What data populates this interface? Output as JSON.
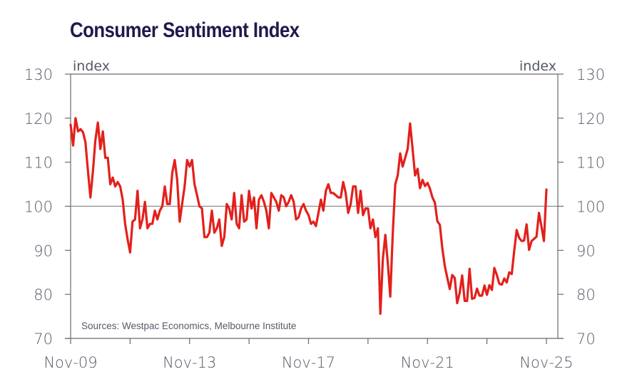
{
  "chart_data": {
    "type": "line",
    "title": "Consumer Sentiment Index",
    "ylabel_left": "index",
    "ylabel_right": "index",
    "xlabel": "",
    "ylim": [
      70,
      130
    ],
    "y_ticks": [
      70,
      80,
      90,
      100,
      110,
      120,
      130
    ],
    "x_tick_labels": [
      "Nov-09",
      "Nov-13",
      "Nov-17",
      "Nov-21",
      "Nov-25"
    ],
    "x_minor_ticks": [
      "Nov-09",
      "Nov-11",
      "Nov-13",
      "Nov-15",
      "Nov-17",
      "Nov-19",
      "Nov-21",
      "Nov-23",
      "Nov-25"
    ],
    "x_range": [
      "2009-11",
      "2025-11"
    ],
    "reference_line": 100,
    "grid": false,
    "legend": "none",
    "source_note": "Sources: Westpac Economics, Melbourne Institute",
    "line_color": "#e3201b",
    "series": [
      {
        "name": "Consumer Sentiment Index",
        "start": "2009-11",
        "frequency": "monthly",
        "values": [
          118.5,
          113.8,
          120,
          117,
          117.5,
          116.8,
          114.5,
          108,
          102,
          108,
          115,
          119,
          113,
          117,
          111,
          111,
          105,
          106.5,
          104.5,
          105.5,
          104.5,
          101.5,
          96,
          92.5,
          89.5,
          96.5,
          97,
          103.5,
          95,
          97,
          101,
          95,
          96,
          96,
          99,
          97,
          99,
          100,
          104.5,
          100.5,
          100.5,
          107.5,
          110.5,
          106,
          96.5,
          100.5,
          104.5,
          110.5,
          109,
          110.5,
          105,
          102.5,
          100,
          99.5,
          93,
          93,
          94,
          99,
          94,
          95,
          97,
          91,
          93,
          100.5,
          99.5,
          97,
          103,
          96,
          95,
          102.5,
          96.5,
          97,
          103.5,
          99.5,
          102,
          95,
          101.5,
          102.5,
          101,
          99,
          95,
          103,
          102,
          101,
          99,
          102.5,
          102,
          100,
          101,
          102.5,
          101,
          97,
          97.5,
          99.5,
          100.5,
          99,
          98,
          96,
          96.5,
          95.5,
          98.5,
          101.5,
          99,
          103.5,
          105,
          103,
          103,
          102.5,
          102,
          102,
          105.5,
          103,
          98.5,
          100.5,
          104.5,
          104.5,
          98.5,
          103.5,
          98,
          99.5,
          99.5,
          95,
          97,
          93,
          95,
          75.6,
          88,
          93.5,
          87,
          79.5,
          93.8,
          105,
          107,
          112,
          109,
          111,
          113,
          118.8,
          113,
          107,
          108.5,
          104.1,
          106,
          104.6,
          105.3,
          104,
          102,
          100.8,
          96.6,
          95.8,
          90.4,
          86.4,
          83.8,
          81.2,
          84.4,
          83.7,
          78,
          80.3,
          84.3,
          78.5,
          78.5,
          85.8,
          79,
          79.2,
          81.3,
          79.7,
          79.7,
          82,
          79.9,
          82.1,
          81,
          86,
          84.4,
          82.4,
          82.2,
          83.6,
          82.7,
          85,
          84.6,
          89.8,
          94.6,
          92.8,
          92.1,
          92.2,
          95.9,
          90.1,
          92.1,
          92.6,
          93.1,
          98.5,
          95.4,
          92.1,
          103.8
        ]
      }
    ]
  }
}
